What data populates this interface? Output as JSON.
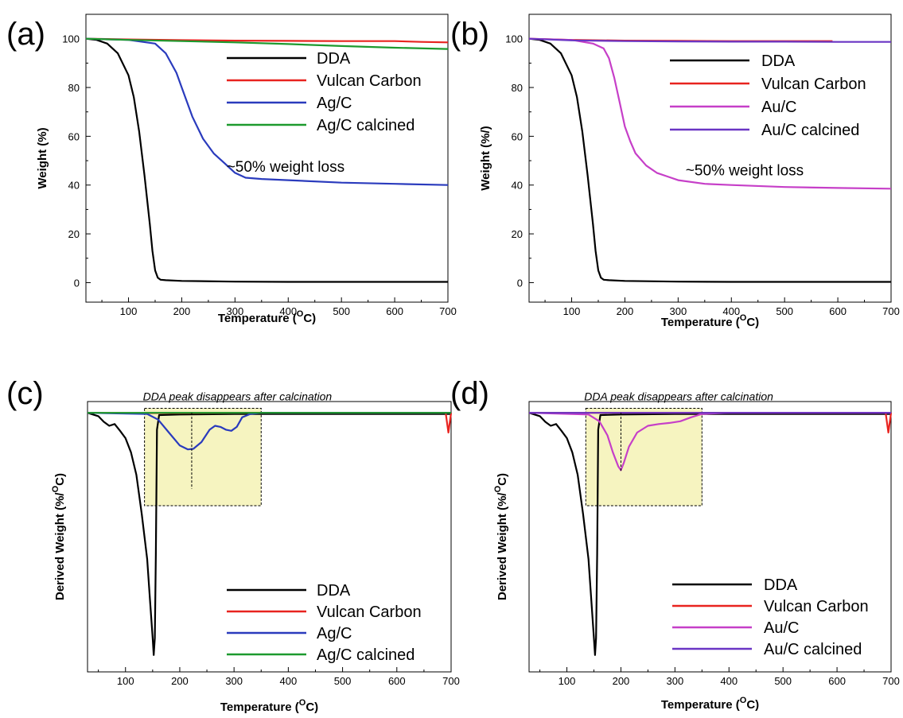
{
  "chart_data": [
    {
      "panel": "(a)",
      "type": "line",
      "xlabel": "Temperature (",
      "xlabel_sup": "O",
      "xlabel_tail": "C)",
      "ylabel": "Weight (%)",
      "xlim": [
        20,
        700
      ],
      "ylim": [
        -8,
        110
      ],
      "xticks": [
        100,
        200,
        300,
        400,
        500,
        600,
        700
      ],
      "yticks": [
        0,
        20,
        40,
        60,
        80,
        100
      ],
      "legend": {
        "position": "top-right"
      },
      "annotation": {
        "text": "~50% weight loss",
        "x": 395,
        "y": 45.5
      },
      "series": [
        {
          "name": "DDA",
          "color": "#000000",
          "x": [
            20,
            40,
            60,
            80,
            100,
            110,
            120,
            130,
            140,
            145,
            150,
            155,
            160,
            170,
            200,
            300,
            400,
            500,
            600,
            700
          ],
          "y": [
            100,
            99.5,
            98,
            94,
            85,
            76,
            62,
            44,
            24,
            13,
            5,
            2,
            1.2,
            1,
            0.7,
            0.4,
            0.3,
            0.3,
            0.3,
            0.3
          ]
        },
        {
          "name": "Vulcan Carbon",
          "color": "#e8231f",
          "x": [
            20,
            100,
            200,
            300,
            400,
            500,
            600,
            650,
            700
          ],
          "y": [
            100,
            99.7,
            99.4,
            99.2,
            99.1,
            99,
            99,
            98.7,
            98.5
          ]
        },
        {
          "name": "Ag/C",
          "color": "#2a3bbd",
          "x": [
            20,
            100,
            150,
            170,
            190,
            200,
            210,
            220,
            240,
            260,
            280,
            300,
            320,
            350,
            400,
            500,
            600,
            700
          ],
          "y": [
            100,
            99.5,
            98,
            94,
            86,
            80,
            74,
            68,
            59,
            53,
            49,
            45,
            43,
            42.5,
            42,
            41,
            40.5,
            40
          ]
        },
        {
          "name": "Ag/C calcined",
          "color": "#1d9a2e",
          "x": [
            20,
            100,
            200,
            300,
            400,
            500,
            600,
            700
          ],
          "y": [
            100,
            99.5,
            99,
            98.5,
            97.8,
            97,
            96.3,
            95.8
          ]
        }
      ]
    },
    {
      "panel": "(b)",
      "type": "line",
      "xlabel": "Temperature (",
      "xlabel_sup": "O",
      "xlabel_tail": "C)",
      "ylabel": "Weight (%/)",
      "xlim": [
        20,
        700
      ],
      "ylim": [
        -8,
        110
      ],
      "xticks": [
        100,
        200,
        300,
        400,
        500,
        600,
        700
      ],
      "yticks": [
        0,
        20,
        40,
        60,
        80,
        100
      ],
      "legend": {
        "position": "top-right"
      },
      "annotation": {
        "text": "~50% weight loss",
        "x": 425,
        "y": 44
      },
      "series": [
        {
          "name": "DDA",
          "color": "#000000",
          "x": [
            20,
            40,
            60,
            80,
            100,
            110,
            120,
            130,
            140,
            145,
            150,
            155,
            160,
            170,
            200,
            300,
            400,
            500,
            600,
            700
          ],
          "y": [
            100,
            99.5,
            98,
            94,
            85,
            76,
            62,
            44,
            24,
            13,
            5,
            2,
            1.2,
            1,
            0.7,
            0.4,
            0.3,
            0.3,
            0.3,
            0.3
          ]
        },
        {
          "name": "Vulcan Carbon",
          "color": "#e8231f",
          "x": [
            20,
            100,
            200,
            300,
            400,
            500,
            590
          ],
          "y": [
            100,
            99.5,
            99.2,
            99.1,
            99,
            99,
            99
          ]
        },
        {
          "name": "Au/C",
          "color": "#c63fc8",
          "x": [
            20,
            100,
            140,
            160,
            170,
            180,
            190,
            200,
            210,
            220,
            240,
            260,
            280,
            300,
            350,
            400,
            500,
            600,
            700
          ],
          "y": [
            100,
            99.5,
            98,
            96,
            92,
            84,
            74,
            64,
            58,
            53,
            48,
            45,
            43.5,
            42,
            40.5,
            40,
            39.2,
            38.8,
            38.5
          ]
        },
        {
          "name": "Au/C calcined",
          "color": "#6a35c4",
          "x": [
            20,
            100,
            200,
            300,
            400,
            500,
            600,
            700
          ],
          "y": [
            100,
            99.3,
            99,
            98.9,
            98.8,
            98.8,
            98.7,
            98.7
          ]
        }
      ]
    },
    {
      "panel": "(c)",
      "type": "line",
      "xlabel": "Temperature (",
      "xlabel_sup": "O",
      "xlabel_tail": "C)",
      "ylabel": "Derived Weight (%/",
      "ylabel_sup": "O",
      "ylabel_tail": "C)",
      "xlim": [
        30,
        700
      ],
      "ylim": [
        -46,
        2
      ],
      "xticks": [
        100,
        200,
        300,
        400,
        500,
        600,
        700
      ],
      "yticks": [],
      "legend": {
        "position": "bottom-right"
      },
      "highlight_box": {
        "x": [
          135,
          350
        ],
        "y": [
          -16.5,
          0.8
        ],
        "label": "DDA peak disappears after calcination"
      },
      "peak_marker": {
        "x": 222,
        "y_top": 0,
        "y_bottom": -13.5
      },
      "series": [
        {
          "name": "DDA",
          "color": "#000000",
          "x": [
            30,
            50,
            60,
            70,
            80,
            90,
            100,
            110,
            120,
            130,
            140,
            145,
            150,
            152,
            154,
            156,
            158,
            162,
            200,
            300,
            400,
            500,
            600,
            700
          ],
          "y": [
            0,
            -0.6,
            -1.6,
            -2.3,
            -2.0,
            -3.2,
            -4.5,
            -7.0,
            -11.0,
            -18.0,
            -26.0,
            -33.0,
            -40.0,
            -43.0,
            -40.0,
            -25.0,
            -3.0,
            -0.4,
            -0.3,
            -0.2,
            -0.2,
            -0.2,
            -0.2,
            -0.2
          ]
        },
        {
          "name": "Vulcan Carbon",
          "color": "#e8231f",
          "x": [
            30,
            100,
            200,
            300,
            400,
            500,
            600,
            690,
            695,
            700
          ],
          "y": [
            0,
            -0.05,
            -0.05,
            0,
            0,
            0,
            0,
            0,
            -3.5,
            0
          ]
        },
        {
          "name": "Ag/C",
          "color": "#2a3bbd",
          "x": [
            30,
            140,
            160,
            180,
            200,
            215,
            225,
            240,
            255,
            265,
            275,
            285,
            295,
            305,
            315,
            330,
            350,
            400,
            700
          ],
          "y": [
            0,
            -0.2,
            -1.2,
            -3.5,
            -5.8,
            -6.5,
            -6.4,
            -5.2,
            -3.0,
            -2.3,
            -2.5,
            -3.0,
            -3.2,
            -2.5,
            -0.8,
            -0.2,
            0,
            0,
            0
          ]
        },
        {
          "name": "Ag/C calcined",
          "color": "#1d9a2e",
          "x": [
            30,
            100,
            200,
            300,
            400,
            500,
            600,
            700
          ],
          "y": [
            0,
            0,
            0,
            0,
            0,
            0,
            0,
            0
          ]
        }
      ]
    },
    {
      "panel": "(d)",
      "type": "line",
      "xlabel": "Temperature (",
      "xlabel_sup": "O",
      "xlabel_tail": "C)",
      "ylabel": "Derived Weight (%/",
      "ylabel_sup": "O",
      "ylabel_tail": "C)",
      "xlim": [
        30,
        700
      ],
      "ylim": [
        -46,
        2
      ],
      "xticks": [
        100,
        200,
        300,
        400,
        500,
        600,
        700
      ],
      "yticks": [],
      "legend": {
        "position": "bottom-right"
      },
      "highlight_box": {
        "x": [
          135,
          350
        ],
        "y": [
          -16.5,
          0.8
        ],
        "label": "DDA peak disappears after calcination"
      },
      "peak_marker": {
        "x": 200,
        "y_top": 0,
        "y_bottom": -10.5
      },
      "series": [
        {
          "name": "DDA",
          "color": "#000000",
          "x": [
            30,
            50,
            60,
            70,
            80,
            90,
            100,
            110,
            120,
            130,
            140,
            145,
            150,
            152,
            154,
            156,
            158,
            162,
            200,
            300,
            400,
            500,
            600,
            700
          ],
          "y": [
            0,
            -0.6,
            -1.6,
            -2.3,
            -2.0,
            -3.2,
            -4.5,
            -7.0,
            -11.0,
            -18.0,
            -26.0,
            -33.0,
            -40.0,
            -43.0,
            -40.0,
            -25.0,
            -3.0,
            -0.4,
            -0.3,
            -0.2,
            -0.2,
            -0.2,
            -0.2,
            -0.2
          ]
        },
        {
          "name": "Vulcan Carbon",
          "color": "#e8231f",
          "x": [
            30,
            100,
            200,
            300,
            400,
            500,
            600,
            690,
            695,
            700
          ],
          "y": [
            0,
            0,
            0,
            0,
            0,
            0,
            0,
            0,
            -3.5,
            0
          ]
        },
        {
          "name": "Au/C",
          "color": "#c63fc8",
          "x": [
            30,
            140,
            160,
            175,
            185,
            195,
            200,
            205,
            215,
            230,
            250,
            270,
            290,
            310,
            330,
            350,
            400,
            700
          ],
          "y": [
            0,
            -0.3,
            -1.5,
            -4.0,
            -7.0,
            -9.5,
            -10.2,
            -9.0,
            -6.0,
            -3.5,
            -2.3,
            -2.0,
            -1.8,
            -1.5,
            -0.8,
            -0.2,
            0,
            0
          ]
        },
        {
          "name": "Au/C calcined",
          "color": "#6a35c4",
          "x": [
            30,
            100,
            200,
            300,
            400,
            500,
            600,
            700
          ],
          "y": [
            0,
            0,
            0,
            0,
            0,
            0,
            0,
            0
          ]
        }
      ]
    }
  ]
}
